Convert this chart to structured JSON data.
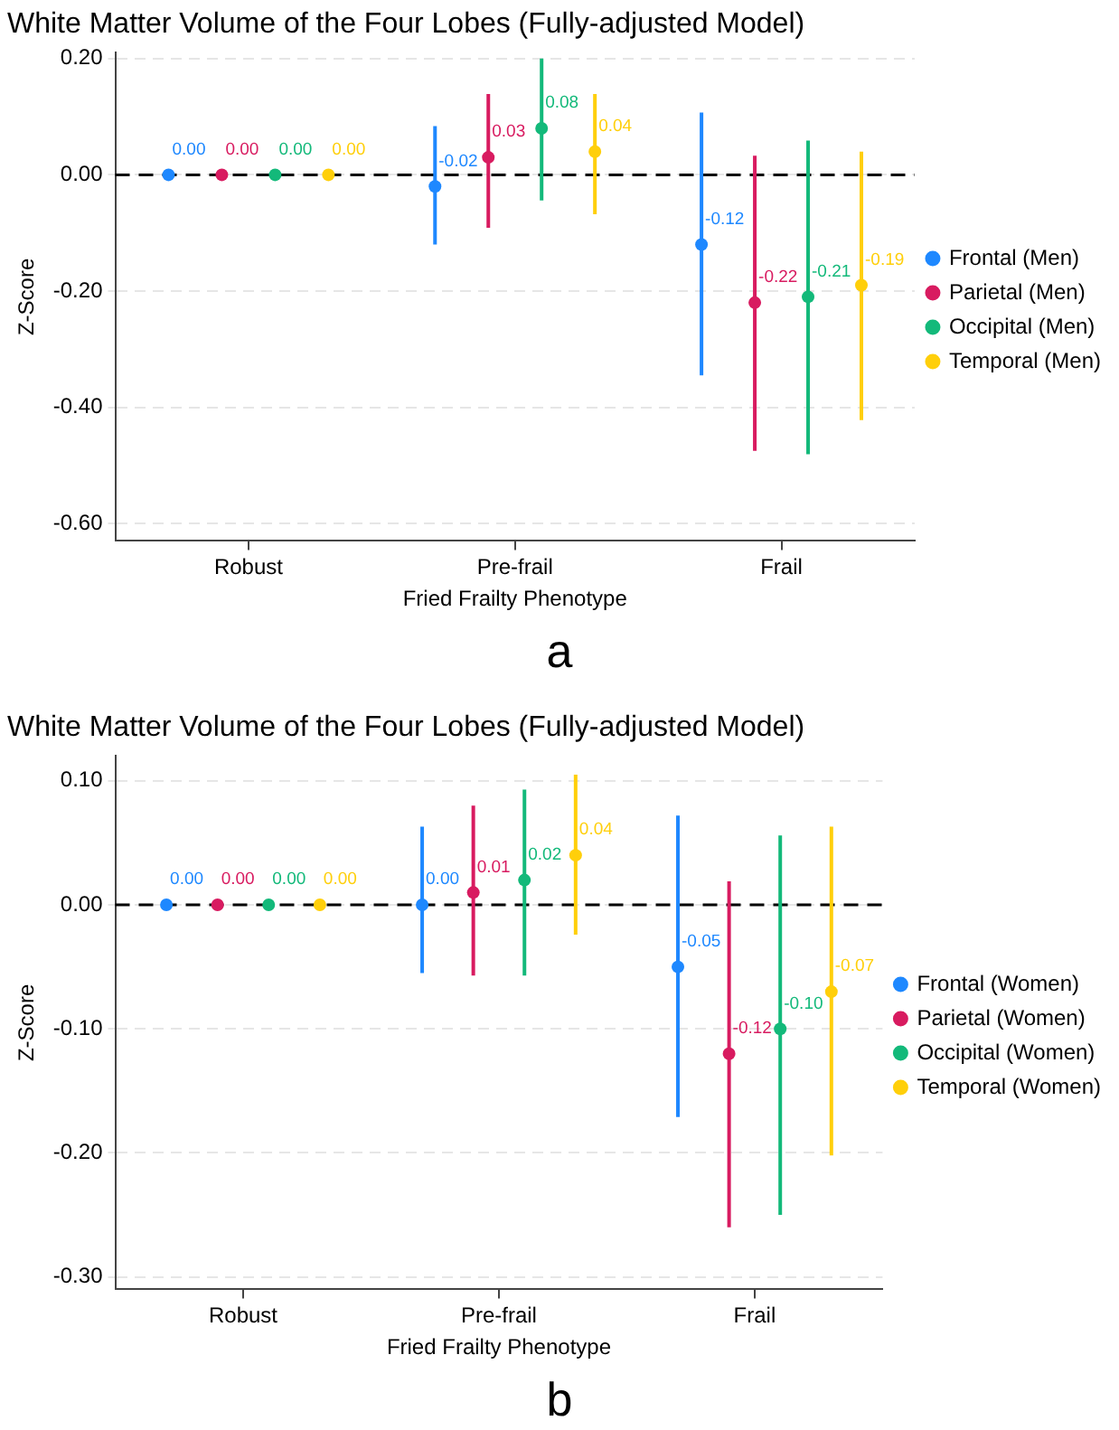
{
  "chart_data": [
    {
      "type": "scatter",
      "title": "White Matter Volume of the Four Lobes (Fully-adjusted Model)",
      "xlabel": "Fried Frailty Phenotype",
      "ylabel": "Z-Score",
      "categories": [
        "Robust",
        "Pre-frail",
        "Frail"
      ],
      "ylim": [
        -0.63,
        0.21
      ],
      "yticks": [
        {
          "value": -0.6,
          "label": "-0.60"
        },
        {
          "value": -0.4,
          "label": "-0.40"
        },
        {
          "value": -0.2,
          "label": "-0.20"
        },
        {
          "value": 0,
          "label": "0.00"
        },
        {
          "value": 0.2,
          "label": "0.20"
        }
      ],
      "grid": "y",
      "legend": "right",
      "marker": "circle",
      "ref_lines": [
        {
          "axis": "y",
          "value": 0,
          "color": "#000000",
          "line_style": "dashed"
        }
      ],
      "annotations": [
        "a"
      ],
      "series": [
        {
          "name": "Frontal (Men)",
          "color": "#1e88ff",
          "values": [
            0,
            -0.02,
            -0.12
          ],
          "errors": [
            null,
            [
              -0.12,
              0.084
            ],
            [
              -0.345,
              0.107
            ]
          ],
          "value_labels": [
            "0.00",
            "-0.02",
            "-0.12"
          ]
        },
        {
          "name": "Parietal (Men)",
          "color": "#d81b60",
          "values": [
            0,
            0.03,
            -0.22
          ],
          "errors": [
            null,
            [
              -0.091,
              0.139
            ],
            [
              -0.475,
              0.033
            ]
          ],
          "value_labels": [
            "0.00",
            "0.03",
            "-0.22"
          ]
        },
        {
          "name": "Occipital (Men)",
          "color": "#13b97a",
          "values": [
            0,
            0.08,
            -0.21
          ],
          "errors": [
            null,
            [
              -0.044,
              0.2
            ],
            [
              -0.481,
              0.059
            ]
          ],
          "value_labels": [
            "0.00",
            "0.08",
            "-0.21"
          ]
        },
        {
          "name": "Temporal (Men)",
          "color": "#ffcf0a",
          "values": [
            0,
            0.04,
            -0.19
          ],
          "errors": [
            null,
            [
              -0.068,
              0.139
            ],
            [
              -0.422,
              0.04
            ]
          ],
          "value_labels": [
            "0.00",
            "0.04",
            "-0.19"
          ]
        }
      ]
    },
    {
      "type": "scatter",
      "title": "White Matter Volume of the Four Lobes (Fully-adjusted Model)",
      "xlabel": "Fried Frailty Phenotype",
      "ylabel": "Z-Score",
      "categories": [
        "Robust",
        "Pre-frail",
        "Frail"
      ],
      "ylim": [
        -0.31,
        0.12
      ],
      "yticks": [
        {
          "value": -0.3,
          "label": "-0.30"
        },
        {
          "value": -0.2,
          "label": "-0.20"
        },
        {
          "value": -0.1,
          "label": "-0.10"
        },
        {
          "value": 0,
          "label": "0.00"
        },
        {
          "value": 0.1,
          "label": "0.10"
        }
      ],
      "grid": "y",
      "legend": "right",
      "marker": "circle",
      "ref_lines": [
        {
          "axis": "y",
          "value": 0,
          "color": "#000000",
          "line_style": "dashed"
        }
      ],
      "annotations": [
        "b"
      ],
      "series": [
        {
          "name": "Frontal (Women)",
          "color": "#1e88ff",
          "values": [
            0,
            0.0,
            -0.05
          ],
          "errors": [
            null,
            [
              -0.055,
              0.063
            ],
            [
              -0.171,
              0.072
            ]
          ],
          "value_labels": [
            "0.00",
            "0.00",
            "-0.05"
          ]
        },
        {
          "name": "Parietal (Women)",
          "color": "#d81b60",
          "values": [
            0,
            0.01,
            -0.12
          ],
          "errors": [
            null,
            [
              -0.057,
              0.08
            ],
            [
              -0.26,
              0.019
            ]
          ],
          "value_labels": [
            "0.00",
            "0.01",
            "-0.12"
          ]
        },
        {
          "name": "Occipital (Women)",
          "color": "#13b97a",
          "values": [
            0,
            0.02,
            -0.1
          ],
          "errors": [
            null,
            [
              -0.057,
              0.093
            ],
            [
              -0.25,
              0.056
            ]
          ],
          "value_labels": [
            "0.00",
            "0.02",
            "-0.10"
          ]
        },
        {
          "name": "Temporal (Women)",
          "color": "#ffcf0a",
          "values": [
            0,
            0.04,
            -0.07
          ],
          "errors": [
            null,
            [
              -0.024,
              0.105
            ],
            [
              -0.202,
              0.063
            ]
          ],
          "value_labels": [
            "0.00",
            "0.04",
            "-0.07"
          ]
        }
      ]
    }
  ]
}
